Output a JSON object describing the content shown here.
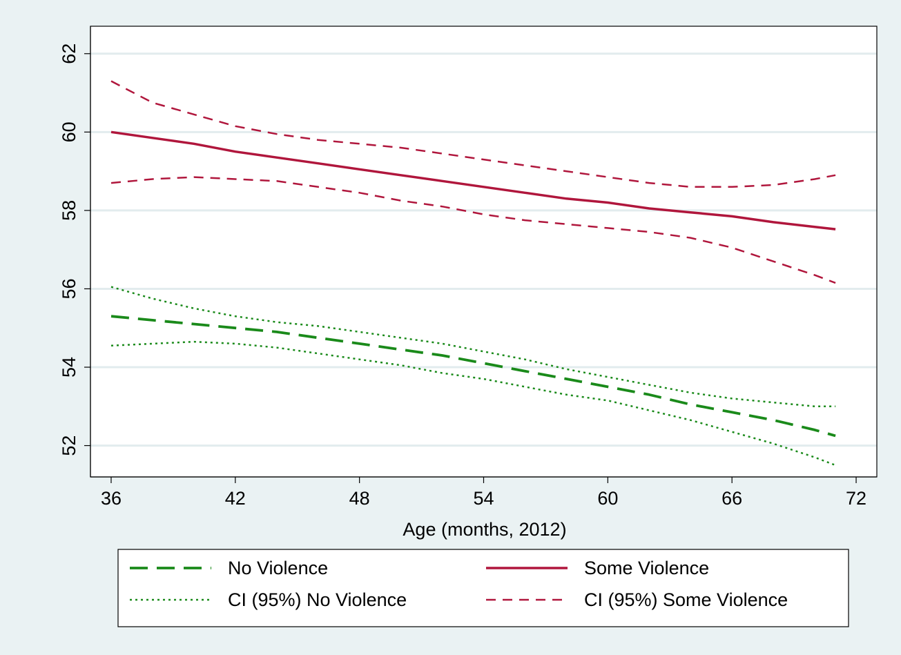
{
  "chart_data": {
    "type": "line",
    "title": "",
    "xlabel": "Age (months, 2012)",
    "ylabel": "",
    "xlim": [
      35,
      73
    ],
    "ylim": [
      51.2,
      62.7
    ],
    "xticks": [
      36,
      42,
      48,
      54,
      60,
      66,
      72
    ],
    "yticks": [
      52,
      54,
      56,
      58,
      60,
      62
    ],
    "grid": "horizontal",
    "legend": {
      "placement": "bottom",
      "columns": 2
    },
    "x": [
      36,
      38,
      40,
      42,
      44,
      46,
      48,
      50,
      52,
      54,
      56,
      58,
      60,
      62,
      64,
      66,
      68,
      70,
      71
    ],
    "series": [
      {
        "name": "No Violence",
        "color": "#1a8a1a",
        "style": "longdash",
        "values": [
          55.3,
          55.2,
          55.1,
          55.0,
          54.9,
          54.75,
          54.6,
          54.45,
          54.3,
          54.1,
          53.9,
          53.7,
          53.5,
          53.3,
          53.05,
          52.85,
          52.65,
          52.4,
          52.25
        ]
      },
      {
        "name": "Some Violence",
        "color": "#b0163c",
        "style": "solid",
        "values": [
          60.0,
          59.85,
          59.7,
          59.5,
          59.35,
          59.2,
          59.05,
          58.9,
          58.75,
          58.6,
          58.45,
          58.3,
          58.2,
          58.05,
          57.95,
          57.85,
          57.7,
          57.58,
          57.52
        ]
      },
      {
        "name": "CI (95%) No Violence",
        "color": "#1a8a1a",
        "style": "dotted",
        "upper": [
          56.05,
          55.75,
          55.5,
          55.3,
          55.15,
          55.05,
          54.9,
          54.75,
          54.6,
          54.4,
          54.2,
          53.95,
          53.75,
          53.55,
          53.35,
          53.2,
          53.1,
          53.0,
          53.0
        ],
        "lower": [
          54.55,
          54.6,
          54.65,
          54.6,
          54.5,
          54.35,
          54.2,
          54.05,
          53.85,
          53.7,
          53.5,
          53.3,
          53.15,
          52.9,
          52.65,
          52.35,
          52.05,
          51.7,
          51.5
        ]
      },
      {
        "name": "CI (95%) Some Violence",
        "color": "#b0163c",
        "style": "dashed",
        "upper": [
          61.3,
          60.75,
          60.45,
          60.15,
          59.95,
          59.8,
          59.7,
          59.6,
          59.45,
          59.3,
          59.15,
          59.0,
          58.85,
          58.7,
          58.6,
          58.6,
          58.65,
          58.8,
          58.9
        ],
        "lower": [
          58.7,
          58.8,
          58.85,
          58.8,
          58.75,
          58.6,
          58.45,
          58.25,
          58.1,
          57.9,
          57.75,
          57.65,
          57.55,
          57.45,
          57.3,
          57.05,
          56.7,
          56.35,
          56.15
        ]
      }
    ]
  }
}
